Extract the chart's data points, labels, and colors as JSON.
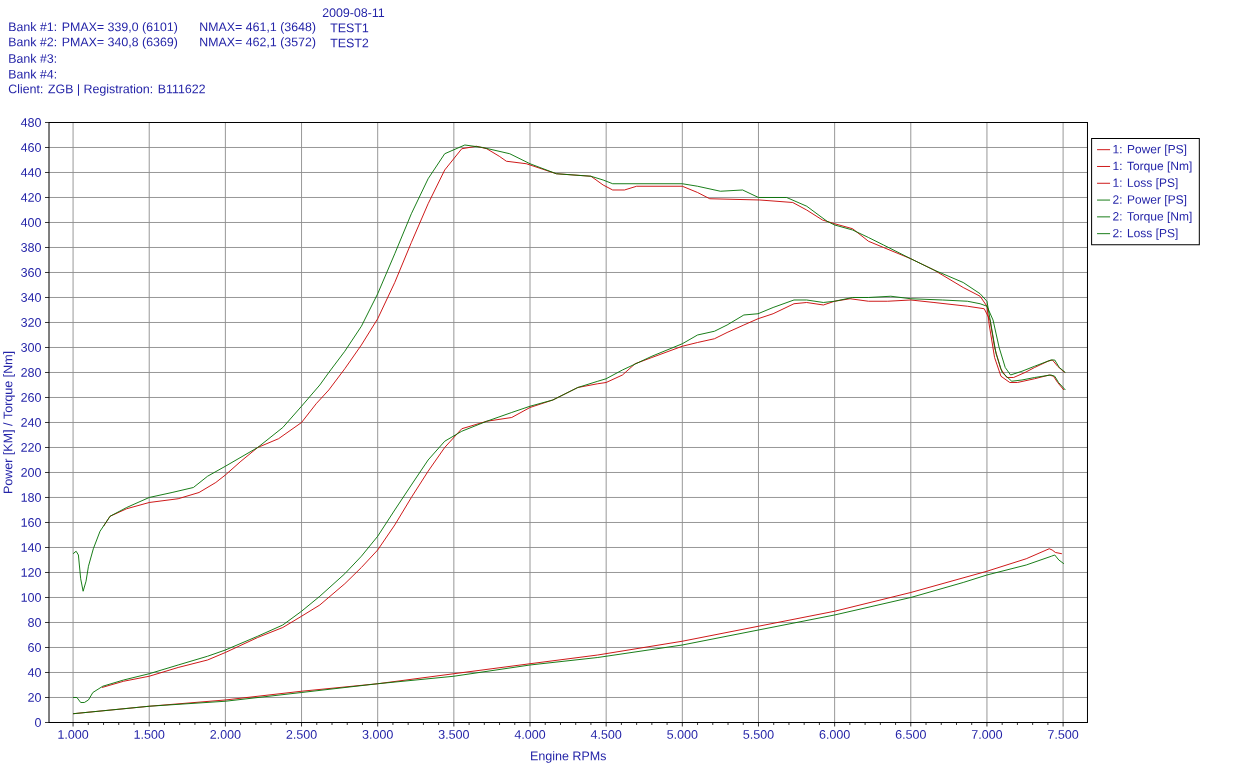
{
  "chart_data": {
    "type": "line",
    "xlabel": "Engine RPMs",
    "ylabel": "Power [KM] / Torque [Nm]",
    "annotations": [
      "2009-08-11",
      "Bank #1: PMAX= 339,0 (6101)",
      "NMAX= 461,1 (3648)",
      "TEST1",
      "Bank #2: PMAX= 340,8 (6369)",
      "NMAX= 462,1 (3572)",
      "TEST2",
      "Bank #3:",
      "Bank #4:",
      "Client: ZGB | Registration: B111622"
    ],
    "xlim": [
      842,
      7660
    ],
    "ylim": [
      0,
      480
    ],
    "xticks": [
      {
        "value": 1000,
        "label": "1.000"
      },
      {
        "value": 1500,
        "label": "1.500"
      },
      {
        "value": 2000,
        "label": "2.000"
      },
      {
        "value": 2500,
        "label": "2.500"
      },
      {
        "value": 3000,
        "label": "3.000"
      },
      {
        "value": 3500,
        "label": "3.500"
      },
      {
        "value": 4000,
        "label": "4.000"
      },
      {
        "value": 4500,
        "label": "4.500"
      },
      {
        "value": 5000,
        "label": "5.000"
      },
      {
        "value": 5500,
        "label": "5.500"
      },
      {
        "value": 6000,
        "label": "6.000"
      },
      {
        "value": 6500,
        "label": "6.500"
      },
      {
        "value": 7000,
        "label": "7.000"
      },
      {
        "value": 7500,
        "label": "7.500"
      }
    ],
    "yticks": [
      0,
      20,
      40,
      60,
      80,
      100,
      120,
      140,
      160,
      180,
      200,
      220,
      240,
      260,
      280,
      300,
      320,
      340,
      360,
      380,
      400,
      420,
      440,
      460,
      480
    ],
    "grid": true,
    "legend": "top right",
    "series": [
      {
        "name": "1: Power [PS]",
        "color": "#c80000",
        "x": [
          1190,
          1332,
          1500,
          1690,
          1883,
          2000,
          2212,
          2377,
          2500,
          2620,
          2784,
          2893,
          3000,
          3112,
          3221,
          3331,
          3440,
          3552,
          3716,
          3880,
          4000,
          4150,
          4314,
          4445,
          4500,
          4607,
          4690,
          4800,
          5000,
          5100,
          5211,
          5294,
          5404,
          5497,
          5596,
          5733,
          5816,
          5926,
          6000,
          6101,
          6222,
          6348,
          6500,
          6652,
          6872,
          6982,
          7020,
          7050,
          7090,
          7130,
          7175,
          7250,
          7313,
          7400,
          7430,
          7464,
          7510
        ],
        "values": [
          28,
          33,
          37,
          44,
          50,
          56,
          68,
          76,
          85,
          94,
          111,
          124,
          138,
          158,
          180,
          201,
          220,
          235,
          241,
          244,
          252,
          258,
          268,
          271,
          272,
          278,
          287,
          292,
          301,
          304,
          307,
          312,
          318,
          323,
          327,
          335,
          336,
          334,
          337,
          339,
          337,
          337,
          338,
          336,
          333,
          331,
          322,
          300,
          283,
          276,
          276,
          280,
          284,
          289,
          290,
          285,
          280
        ]
      },
      {
        "name": "1: Torque [Nm]",
        "color": "#c80000",
        "x": [
          1200,
          1243,
          1352,
          1500,
          1690,
          1827,
          1937,
          2000,
          2102,
          2212,
          2349,
          2500,
          2596,
          2679,
          2784,
          2893,
          3000,
          3112,
          3221,
          3331,
          3440,
          3552,
          3648,
          3716,
          3798,
          3845,
          3976,
          4173,
          4400,
          4480,
          4543,
          4620,
          4700,
          5000,
          5100,
          5180,
          5508,
          5725,
          5816,
          5920,
          6000,
          6118,
          6222,
          6321,
          6500,
          6652,
          6844,
          6955,
          7000,
          7015,
          7050,
          7092,
          7150,
          7200,
          7313,
          7409,
          7437,
          7464,
          7505
        ],
        "values": [
          157,
          165,
          171,
          176,
          179,
          184,
          192,
          198,
          209,
          220,
          227,
          240,
          255,
          266,
          283,
          302,
          323,
          352,
          384,
          415,
          442,
          459,
          461,
          459,
          453,
          449,
          447,
          439,
          437,
          430,
          426,
          426,
          429,
          429,
          424,
          419,
          418,
          416,
          410,
          402,
          399,
          395,
          385,
          380,
          371,
          362,
          348,
          341,
          333,
          318,
          292,
          277,
          272,
          272,
          275,
          278,
          277,
          272,
          266
        ]
      },
      {
        "name": "1: Loss [PS]",
        "color": "#c80000",
        "x": [
          1000,
          1500,
          2000,
          2500,
          3000,
          3500,
          4000,
          4445,
          5000,
          5500,
          6000,
          6500,
          7000,
          7258,
          7409,
          7428,
          7450,
          7492
        ],
        "values": [
          7,
          13,
          18,
          25,
          31,
          39,
          47,
          54,
          65,
          77,
          89,
          104,
          121,
          131,
          139,
          138,
          136,
          135
        ]
      },
      {
        "name": "2: Power [PS]",
        "color": "#006f00",
        "x": [
          1000,
          1025,
          1050,
          1074,
          1101,
          1130,
          1195,
          1332,
          1500,
          1690,
          1883,
          2000,
          2212,
          2377,
          2500,
          2620,
          2784,
          2893,
          3000,
          3112,
          3221,
          3331,
          3440,
          3552,
          3716,
          3880,
          4000,
          4150,
          4314,
          4445,
          4500,
          4607,
          4800,
          5000,
          5100,
          5211,
          5294,
          5404,
          5497,
          5596,
          5733,
          5816,
          5926,
          6000,
          6118,
          6222,
          6369,
          6500,
          6707,
          6872,
          6955,
          7000,
          7040,
          7080,
          7120,
          7155,
          7230,
          7313,
          7420,
          7445,
          7475,
          7515
        ],
        "values": [
          20,
          20,
          16,
          16,
          18,
          24,
          29,
          34,
          39,
          46,
          53,
          58,
          69,
          78,
          89,
          101,
          119,
          133,
          149,
          170,
          190,
          210,
          225,
          233,
          241,
          248,
          253,
          258,
          268,
          273,
          275,
          282,
          293,
          303,
          310,
          313,
          318,
          326,
          327,
          332,
          338,
          338,
          336,
          337,
          340,
          340,
          341,
          339,
          338,
          337,
          335,
          333,
          322,
          300,
          284,
          278,
          281,
          285,
          290,
          290,
          284,
          280
        ]
      },
      {
        "name": "2: Torque [Nm]",
        "color": "#006f00",
        "x": [
          1000,
          1020,
          1035,
          1050,
          1066,
          1085,
          1101,
          1133,
          1177,
          1243,
          1352,
          1500,
          1650,
          1790,
          1883,
          2000,
          2212,
          2377,
          2500,
          2620,
          2679,
          2784,
          2893,
          3000,
          3112,
          3221,
          3331,
          3440,
          3572,
          3689,
          3867,
          4000,
          4173,
          4400,
          4480,
          4543,
          4600,
          5000,
          5100,
          5250,
          5396,
          5500,
          5685,
          5817,
          5950,
          6000,
          6118,
          6222,
          6321,
          6500,
          6652,
          6844,
          6955,
          7000,
          7024,
          7060,
          7100,
          7163,
          7230,
          7313,
          7420,
          7445,
          7470,
          7515
        ],
        "values": [
          135,
          137,
          134,
          115,
          105,
          113,
          125,
          139,
          153,
          165,
          172,
          180,
          184,
          188,
          197,
          205,
          220,
          236,
          253,
          270,
          280,
          297,
          317,
          343,
          375,
          407,
          435,
          455,
          462,
          460,
          455,
          447,
          439,
          437,
          434,
          431,
          431,
          431,
          429,
          425,
          426,
          420,
          420,
          413,
          401,
          398,
          394,
          388,
          382,
          371,
          362,
          352,
          343,
          337,
          320,
          295,
          280,
          273,
          274,
          276,
          278,
          277,
          272,
          266
        ]
      },
      {
        "name": "2: Loss [PS]",
        "color": "#006f00",
        "x": [
          1000,
          1500,
          2000,
          2500,
          3000,
          3500,
          4000,
          4445,
          5000,
          5500,
          6000,
          6500,
          6844,
          7000,
          7258,
          7423,
          7445,
          7472,
          7505
        ],
        "values": [
          7,
          13,
          17,
          24,
          31,
          37,
          46,
          52,
          62,
          74,
          86,
          100,
          112,
          118,
          126,
          133,
          134,
          130,
          127
        ]
      }
    ]
  }
}
